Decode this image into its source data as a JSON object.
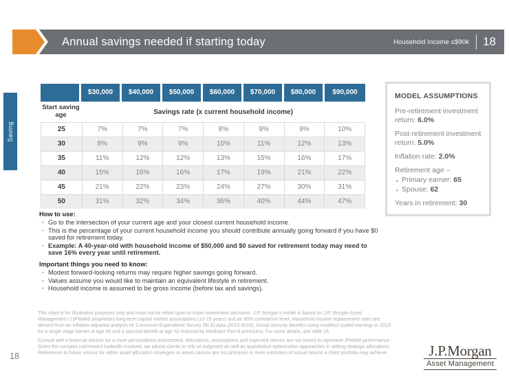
{
  "header": {
    "title": "Annual savings needed if starting today",
    "badge": "Household Income ≤$90k",
    "page": "18"
  },
  "side_tab": {
    "label": "Saving"
  },
  "table": {
    "income_columns": [
      "$30,000",
      "$40,000",
      "$50,000",
      "$60,000",
      "$70,000",
      "$80,000",
      "$90,000"
    ],
    "row_header": "Start saving age",
    "span_header": "Savings rate (x current household income)",
    "rows": [
      {
        "age": "25",
        "values": [
          "7%",
          "7%",
          "7%",
          "8%",
          "9%",
          "9%",
          "10%"
        ]
      },
      {
        "age": "30",
        "values": [
          "8%",
          "9%",
          "9%",
          "10%",
          "11%",
          "12%",
          "13%"
        ]
      },
      {
        "age": "35",
        "values": [
          "11%",
          "12%",
          "12%",
          "13%",
          "15%",
          "16%",
          "17%"
        ]
      },
      {
        "age": "40",
        "values": [
          "15%",
          "16%",
          "16%",
          "17%",
          "19%",
          "21%",
          "22%"
        ]
      },
      {
        "age": "45",
        "values": [
          "21%",
          "22%",
          "23%",
          "24%",
          "27%",
          "30%",
          "31%"
        ]
      },
      {
        "age": "50",
        "values": [
          "31%",
          "32%",
          "34%",
          "36%",
          "40%",
          "44%",
          "47%"
        ]
      }
    ]
  },
  "how_to_use": {
    "heading": "How to use:",
    "bullets": [
      "Go to the intersection of your current age and your closest current household income.",
      "This is the percentage of your current household income you should contribute annually going forward if you have $0 saved for retirement today.",
      "Example: A 40-year-old with household income of $50,000 and $0 saved for retirement today may need to save 16% every year until retirement."
    ]
  },
  "important": {
    "heading": "Important things you need to know:",
    "bullets": [
      "Modest forward-looking returns may require higher savings going forward.",
      "Values assume you would like to maintain an equivalent lifestyle in retirement.",
      "Household income is assumed to be gross income (before tax and savings)."
    ]
  },
  "assumptions": {
    "title": "MODEL ASSUMPTIONS",
    "pre_label": "Pre-retirement investment return:",
    "pre_value": "6.0%",
    "post_label": "Post-retirement investment return:",
    "post_value": "5.0%",
    "inflation_label": "Inflation rate:",
    "inflation_value": "2.0%",
    "retirement_age_label": "Retirement age –",
    "primary_label": "Primary earner:",
    "primary_value": "65",
    "spouse_label": "Spouse:",
    "spouse_value": "62",
    "years_label": "Years in retirement:",
    "years_value": "30"
  },
  "footer": {
    "disclaimer1": "This chart is for illustrative purposes only and must not be relied upon to make investment decisions. J.P. Morgan's model is based on J.P. Morgan Asset Management's (JPMAM) proprietary long-term capital market assumptions (10-15 years) and an 80% confidence level. Household income replacement rates are derived from an inflation-adjusted analysis of: Consumer Expenditure Survey (BLS) data (2013-2016); Social Security benefits using modified scaled earnings in 2019 for a single wage earner at age 65 and a spousal benefit at age 62 reduced by Medicare Part B premiums. For more details, see slide 16.",
    "disclaimer2": "Consult with a financial advisor for a more personalized assessment. Allocations, assumptions and expected returns are not meant to represent JPMAM performance. Given the complex risk/reward tradeoffs involved, we advise clients to rely on judgment as well as quantitative optimization approaches in setting strategic allocations. References to future returns for either asset allocation strategies or asset classes are not promises or even estimates of actual returns a client portfolio may achieve.",
    "page_number": "18",
    "logo_primary": "J.P.Morgan",
    "logo_secondary": "Asset Management"
  },
  "colors": {
    "accent_orange": "#E78C2E",
    "header_gray": "#6C7074",
    "table_blue": "#2D6C96",
    "stripe_gray": "#EDEDED",
    "text_dark": "#3A3A3A",
    "text_gray": "#808080",
    "disclaimer_gray": "#ABABAB",
    "logo_brown": "#463E36"
  }
}
